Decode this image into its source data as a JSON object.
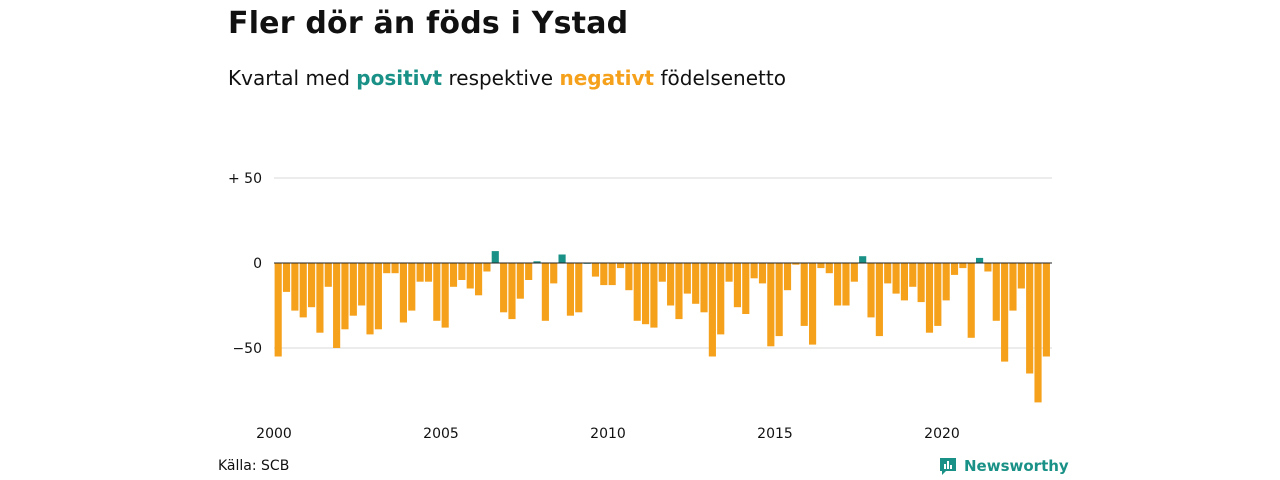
{
  "header": {
    "title": "Fler dör än föds i Ystad",
    "subtitle_prefix": "Kvartal med ",
    "subtitle_positive": "positivt",
    "subtitle_middle": " respektive ",
    "subtitle_negative": "negativt",
    "subtitle_suffix": " födelsenetto"
  },
  "footer": {
    "source": "Källa: SCB",
    "brand": "Newsworthy",
    "brand_icon": "newsworthy-logo-icon"
  },
  "colors": {
    "positive": "#1a9186",
    "negative": "#f5a11c",
    "grid": "#d9d9d9",
    "zero_line": "#222222"
  },
  "chart_data": {
    "type": "bar",
    "title": "Fler dör än föds i Ystad",
    "xlabel": "",
    "ylabel": "",
    "ylim": [
      -85,
      55
    ],
    "y_ticks": [
      {
        "value": 50,
        "label": "+ 50"
      },
      {
        "value": 0,
        "label": "0"
      },
      {
        "value": -50,
        "label": "−50"
      }
    ],
    "x_ticks": [
      {
        "value": 2000,
        "label": "2000"
      },
      {
        "value": 2005,
        "label": "2005"
      },
      {
        "value": 2010,
        "label": "2010"
      },
      {
        "value": 2015,
        "label": "2015"
      },
      {
        "value": 2020,
        "label": "2020"
      }
    ],
    "grid": true,
    "start_year": 2000,
    "periods_per_year": 4,
    "values": [
      -55,
      -17,
      -28,
      -32,
      -26,
      -41,
      -14,
      -50,
      -39,
      -31,
      -25,
      -42,
      -39,
      -6,
      -6,
      -35,
      -28,
      -11,
      -11,
      -34,
      -38,
      -14,
      -10,
      -15,
      -19,
      -5,
      7,
      -29,
      -33,
      -21,
      -10,
      1,
      -34,
      -12,
      5,
      -31,
      -29,
      0,
      -8,
      -13,
      -13,
      -3,
      -16,
      -34,
      -36,
      -38,
      -11,
      -25,
      -33,
      -18,
      -24,
      -29,
      -55,
      -42,
      -11,
      -26,
      -30,
      -9,
      -12,
      -49,
      -43,
      -16,
      -1,
      -37,
      -48,
      -3,
      -6,
      -25,
      -25,
      -11,
      4,
      -32,
      -43,
      -12,
      -18,
      -22,
      -14,
      -23,
      -41,
      -37,
      -22,
      -7,
      -3,
      -44,
      3,
      -5,
      -34,
      -58,
      -28,
      -15,
      -65,
      -82,
      -55
    ]
  }
}
